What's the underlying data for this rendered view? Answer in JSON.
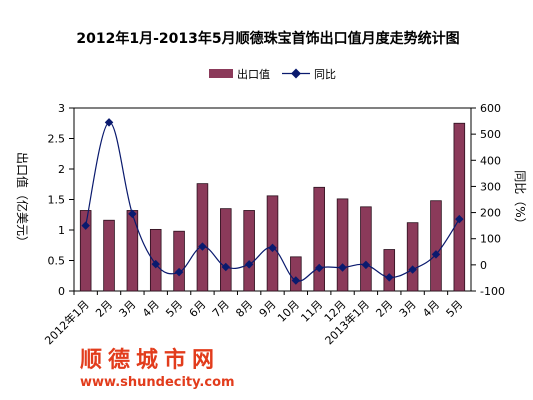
{
  "chart_data": {
    "type": "bar",
    "title": "2012年1月-2013年5月顺德珠宝首饰出口值月度走势统计图",
    "categories": [
      "2012年1月",
      "2月",
      "3月",
      "4月",
      "5月",
      "6月",
      "7月",
      "8月",
      "9月",
      "10月",
      "11月",
      "12月",
      "2013年1月",
      "2月",
      "3月",
      "4月",
      "5月"
    ],
    "series": [
      {
        "name": "出口值",
        "axis": "left",
        "kind": "bar",
        "color": "#8b3a5a",
        "values": [
          1.32,
          1.16,
          1.32,
          1.01,
          0.98,
          1.76,
          1.35,
          1.32,
          1.56,
          0.56,
          1.7,
          1.51,
          1.38,
          0.68,
          1.12,
          1.48,
          2.75
        ]
      },
      {
        "name": "同比",
        "axis": "right",
        "kind": "line",
        "color": "#0a1a6e",
        "values": [
          150,
          545,
          195,
          3,
          -28,
          70,
          -8,
          2,
          65,
          -60,
          -12,
          -10,
          0,
          -48,
          -18,
          40,
          175
        ]
      }
    ],
    "ylabel": "出口值（亿美元）",
    "y2label": "同比（%）",
    "ylim": [
      0,
      3
    ],
    "yticks": [
      "0",
      "0.5",
      "1",
      "1.5",
      "2",
      "2.5",
      "3"
    ],
    "y2lim": [
      -100,
      600
    ],
    "y2ticks": [
      "-100",
      "0",
      "100",
      "200",
      "300",
      "400",
      "500",
      "600"
    ],
    "legend": {
      "position": "top"
    },
    "grid": false
  },
  "watermark": {
    "name": "顺德城市网",
    "url": "www.shundecity.com"
  }
}
